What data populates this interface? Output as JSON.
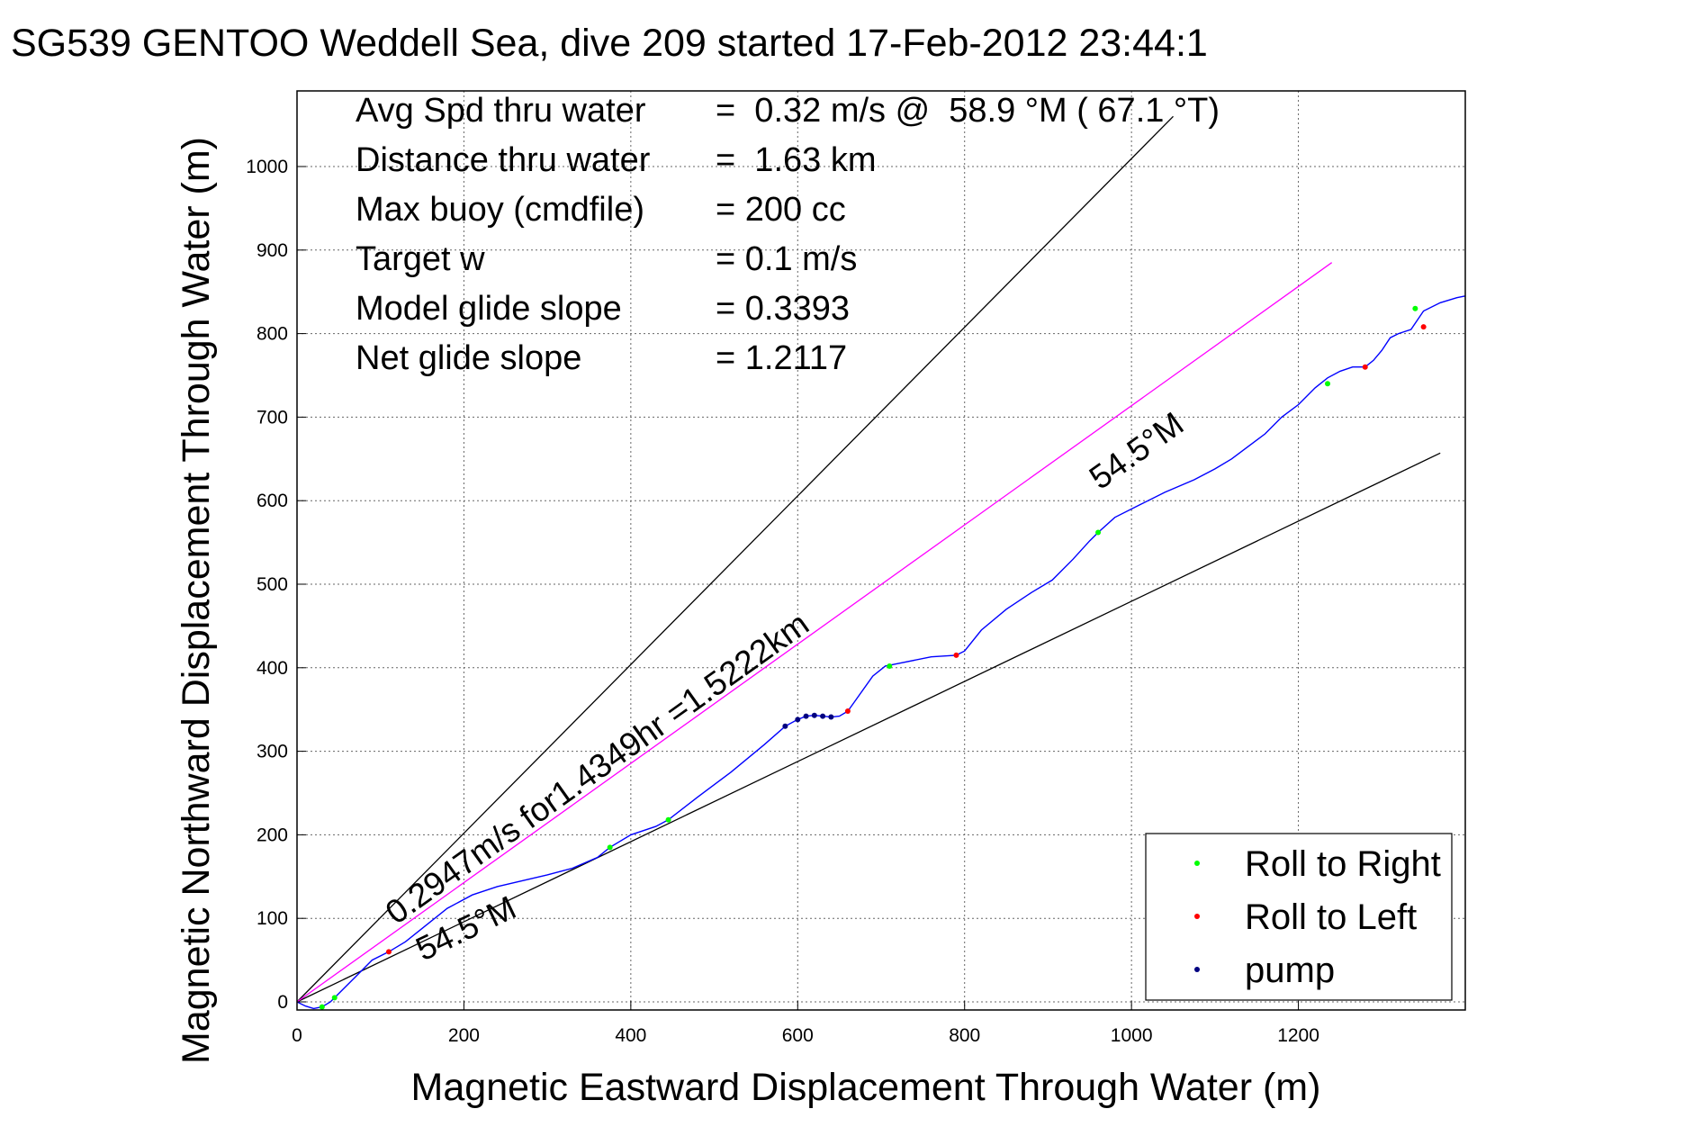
{
  "chart_data": {
    "type": "line",
    "title": "SG539 GENTOO Weddell Sea, dive 209 started 17-Feb-2012 23:44:1",
    "xlabel": "Magnetic Eastward Displacement Through Water (m)",
    "ylabel": "Magnetic Northward Displacement Through Water (m)",
    "xlim": [
      0,
      1400
    ],
    "ylim": [
      -10,
      1090
    ],
    "xticks": [
      0,
      200,
      400,
      600,
      800,
      1000,
      1200
    ],
    "yticks": [
      0,
      100,
      200,
      300,
      400,
      500,
      600,
      700,
      800,
      900,
      1000
    ],
    "grid": true,
    "legend_position": "bottom-right",
    "legend": [
      {
        "label": "Roll to Right",
        "color": "#00ff00"
      },
      {
        "label": "Roll to Left",
        "color": "#ff0000"
      },
      {
        "label": "pump",
        "color": "#000080"
      }
    ],
    "info_lines": [
      {
        "label": "Avg Spd thru water",
        "value": "=  0.32 m/s @  58.9 °M ( 67.1 °T)"
      },
      {
        "label": "Distance thru water",
        "value": "=  1.63 km"
      },
      {
        "label": "Max buoy (cmdfile)",
        "value": "= 200 cc"
      },
      {
        "label": "Target w",
        "value": "= 0.1 m/s"
      },
      {
        "label": "Model glide slope",
        "value": "= 0.3393"
      },
      {
        "label": "Net glide slope",
        "value": "= 1.2117"
      }
    ],
    "annotations": {
      "current_label": "0.2947m/s for1.4349hr =1.5222km",
      "upper_heading_label": "54.5°M",
      "lower_heading_label": "54.5°M"
    },
    "reference_lines": [
      {
        "name": "upper-bound-line",
        "color": "#000000",
        "points": [
          [
            0,
            0
          ],
          [
            1050,
            1060
          ]
        ]
      },
      {
        "name": "lower-bound-line",
        "color": "#000000",
        "points": [
          [
            0,
            0
          ],
          [
            1370,
            657
          ]
        ]
      },
      {
        "name": "current-line",
        "color": "#ff00ff",
        "points": [
          [
            0,
            0
          ],
          [
            1240,
            885
          ]
        ]
      }
    ],
    "series": [
      {
        "color": "#0000ff",
        "x": [
          0,
          10,
          20,
          30,
          40,
          55,
          70,
          90,
          110,
          130,
          150,
          180,
          210,
          240,
          270,
          300,
          330,
          360,
          375,
          400,
          430,
          445,
          480,
          520,
          560,
          585,
          600,
          610,
          620,
          630,
          640,
          650,
          660,
          670,
          690,
          705,
          720,
          760,
          790,
          800,
          820,
          850,
          880,
          905,
          930,
          950,
          960,
          980,
          1010,
          1040,
          1075,
          1100,
          1120,
          1140,
          1160,
          1180,
          1200,
          1220,
          1235,
          1250,
          1265,
          1280,
          1290,
          1300,
          1310,
          1320,
          1335,
          1350,
          1370,
          1390,
          1400
        ],
        "y": [
          0,
          -5,
          -8,
          -6,
          0,
          15,
          30,
          50,
          60,
          72,
          88,
          112,
          128,
          138,
          145,
          152,
          160,
          173,
          185,
          200,
          210,
          218,
          245,
          275,
          308,
          330,
          338,
          342,
          343,
          342,
          341,
          342,
          348,
          362,
          390,
          402,
          405,
          413,
          415,
          420,
          445,
          470,
          490,
          505,
          530,
          552,
          562,
          580,
          595,
          610,
          625,
          638,
          650,
          665,
          680,
          700,
          715,
          735,
          747,
          755,
          760,
          760,
          768,
          780,
          795,
          800,
          805,
          827,
          837,
          843,
          845
        ]
      }
    ],
    "markers": {
      "roll_right": [
        [
          30,
          -6
        ],
        [
          45,
          5
        ],
        [
          375,
          185
        ],
        [
          445,
          218
        ],
        [
          710,
          402
        ],
        [
          960,
          562
        ],
        [
          1235,
          740
        ],
        [
          1340,
          830
        ]
      ],
      "roll_left": [
        [
          110,
          60
        ],
        [
          660,
          348
        ],
        [
          790,
          415
        ],
        [
          1280,
          760
        ],
        [
          1350,
          808
        ]
      ],
      "pump": [
        [
          585,
          330
        ],
        [
          600,
          338
        ],
        [
          610,
          342
        ],
        [
          620,
          343
        ],
        [
          630,
          342
        ],
        [
          640,
          341
        ]
      ]
    }
  }
}
